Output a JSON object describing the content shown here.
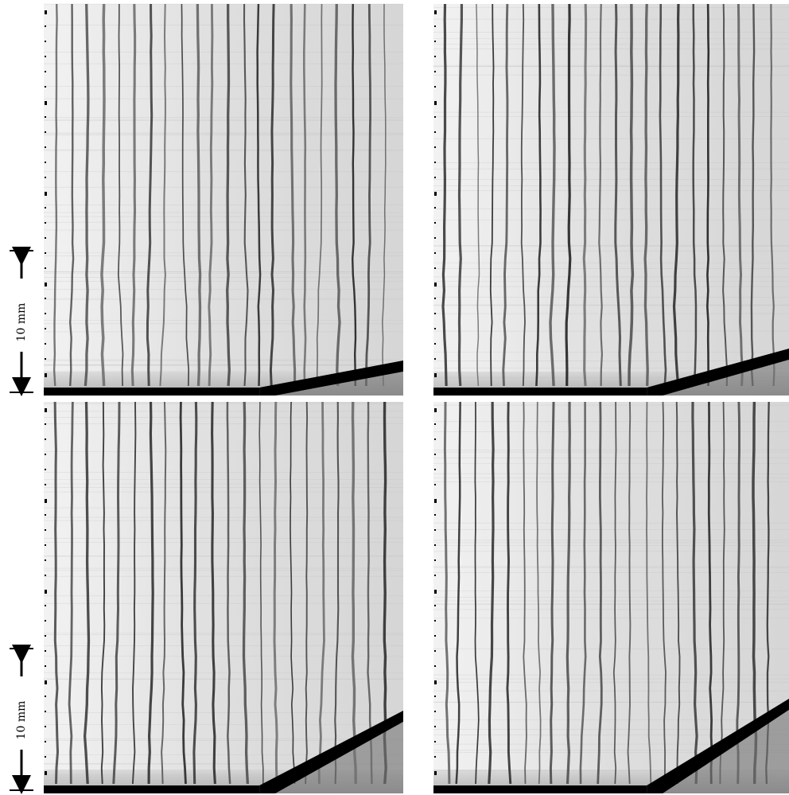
{
  "scale_bars": [
    {
      "label": "10 mm"
    },
    {
      "label": "10 mm"
    }
  ]
}
